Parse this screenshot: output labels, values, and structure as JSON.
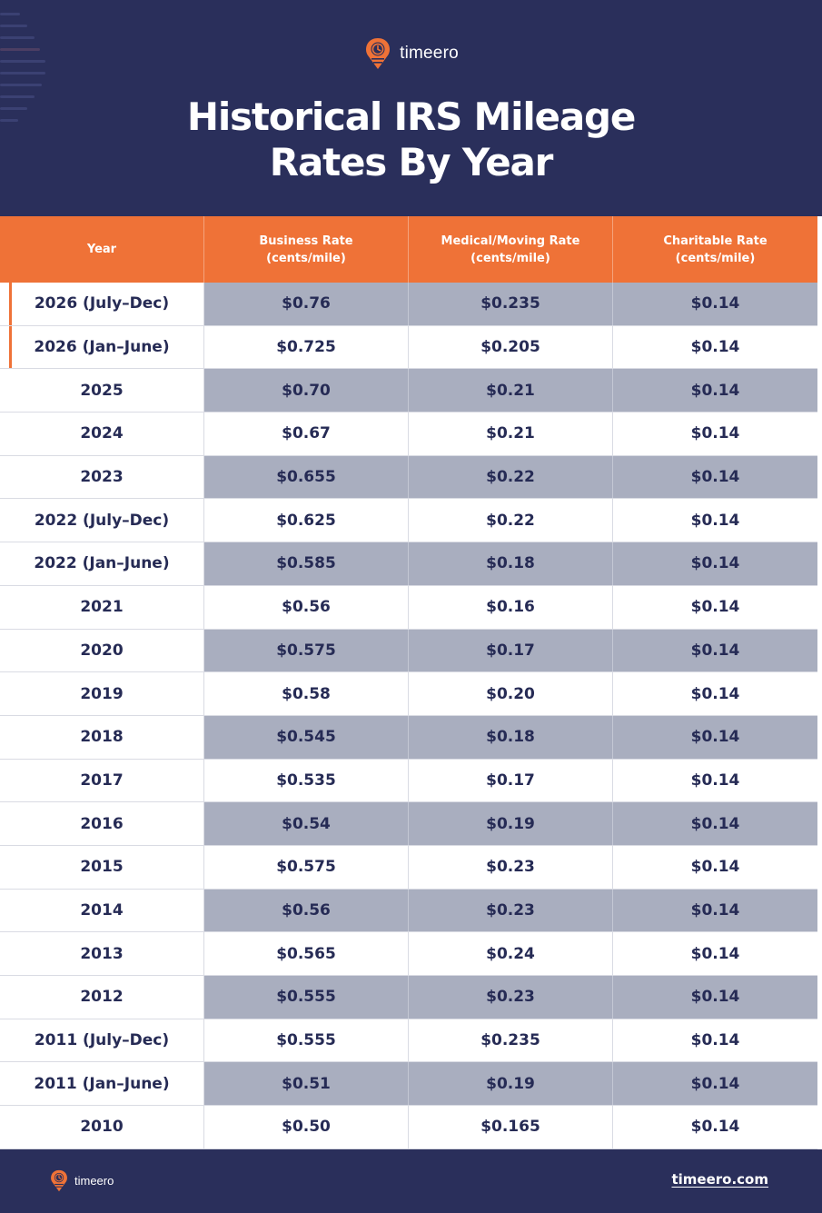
{
  "brand": {
    "name": "timeero",
    "accent_color": "#ef7237",
    "navy_color": "#2a2f5b"
  },
  "title": {
    "line1": "Historical IRS Mileage",
    "line2": "Rates By Year"
  },
  "table": {
    "headers": [
      {
        "line1": "Year",
        "line2": ""
      },
      {
        "line1": "Business Rate",
        "line2": "(cents/mile)"
      },
      {
        "line1": "Medical/Moving Rate",
        "line2": "(cents/mile)"
      },
      {
        "line1": "Charitable Rate",
        "line2": "(cents/mile)"
      }
    ],
    "rows": [
      {
        "year": "2026 (July–Dec)",
        "business": "$0.76",
        "medical": "$0.235",
        "charitable": "$0.14"
      },
      {
        "year": "2026 (Jan–June)",
        "business": "$0.725",
        "medical": "$0.205",
        "charitable": "$0.14"
      },
      {
        "year": "2025",
        "business": "$0.70",
        "medical": "$0.21",
        "charitable": "$0.14"
      },
      {
        "year": "2024",
        "business": "$0.67",
        "medical": "$0.21",
        "charitable": "$0.14"
      },
      {
        "year": "2023",
        "business": "$0.655",
        "medical": "$0.22",
        "charitable": "$0.14"
      },
      {
        "year": "2022 (July–Dec)",
        "business": "$0.625",
        "medical": "$0.22",
        "charitable": "$0.14"
      },
      {
        "year": "2022 (Jan–June)",
        "business": "$0.585",
        "medical": "$0.18",
        "charitable": "$0.14"
      },
      {
        "year": "2021",
        "business": "$0.56",
        "medical": "$0.16",
        "charitable": "$0.14"
      },
      {
        "year": "2020",
        "business": "$0.575",
        "medical": "$0.17",
        "charitable": "$0.14"
      },
      {
        "year": "2019",
        "business": "$0.58",
        "medical": "$0.20",
        "charitable": "$0.14"
      },
      {
        "year": "2018",
        "business": "$0.545",
        "medical": "$0.18",
        "charitable": "$0.14"
      },
      {
        "year": "2017",
        "business": "$0.535",
        "medical": "$0.17",
        "charitable": "$0.14"
      },
      {
        "year": "2016",
        "business": "$0.54",
        "medical": "$0.19",
        "charitable": "$0.14"
      },
      {
        "year": "2015",
        "business": "$0.575",
        "medical": "$0.23",
        "charitable": "$0.14"
      },
      {
        "year": "2014",
        "business": "$0.56",
        "medical": "$0.23",
        "charitable": "$0.14"
      },
      {
        "year": "2013",
        "business": "$0.565",
        "medical": "$0.24",
        "charitable": "$0.14"
      },
      {
        "year": "2012",
        "business": "$0.555",
        "medical": "$0.23",
        "charitable": "$0.14"
      },
      {
        "year": "2011 (July–Dec)",
        "business": "$0.555",
        "medical": "$0.235",
        "charitable": "$0.14"
      },
      {
        "year": "2011 (Jan–June)",
        "business": "$0.51",
        "medical": "$0.19",
        "charitable": "$0.14"
      },
      {
        "year": "2010",
        "business": "$0.50",
        "medical": "$0.165",
        "charitable": "$0.14"
      }
    ]
  },
  "footer": {
    "brand_name": "timeero",
    "link_text": "timeero.com"
  },
  "icons": {
    "logo": "timeero-clock-pin-icon"
  }
}
